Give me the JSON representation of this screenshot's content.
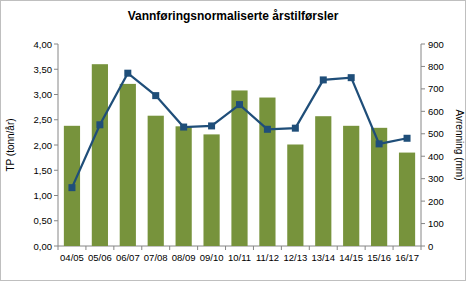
{
  "chart_data": {
    "type": "bar",
    "title": "Vannføringsnormaliserte årstilførsler",
    "y_label": "TP (tonn/år)",
    "y2_label": "Avrenning (mm)",
    "categories": [
      "04/05",
      "05/06",
      "06/07",
      "07/08",
      "08/09",
      "09/10",
      "10/11",
      "11/12",
      "12/13",
      "13/14",
      "14/15",
      "15/16",
      "16/17"
    ],
    "series": [
      {
        "type": "bar",
        "color": "#77933c",
        "values": [
          2.38,
          3.6,
          3.21,
          2.58,
          2.37,
          2.21,
          3.08,
          2.94,
          2.01,
          2.57,
          2.38,
          2.34,
          1.85
        ]
      },
      {
        "type": "line",
        "color": "#1f4e79",
        "marker": "square",
        "axis": "y2",
        "values": [
          260,
          540,
          770,
          670,
          530,
          535,
          630,
          520,
          525,
          740,
          750,
          455,
          480
        ]
      }
    ],
    "ylim": [
      0,
      4
    ],
    "yticks": [
      {
        "value": 0,
        "label": "0,00"
      },
      {
        "value": 0.5,
        "label": "0,50"
      },
      {
        "value": 1,
        "label": "1,00"
      },
      {
        "value": 1.5,
        "label": "1,50"
      },
      {
        "value": 2,
        "label": "2,00"
      },
      {
        "value": 2.5,
        "label": "2,50"
      },
      {
        "value": 3,
        "label": "3,00"
      },
      {
        "value": 3.5,
        "label": "3,50"
      },
      {
        "value": 4,
        "label": "4,00"
      }
    ],
    "y2lim": [
      0,
      900
    ],
    "y2ticks": [
      0,
      100,
      200,
      300,
      400,
      500,
      600,
      700,
      800,
      900
    ],
    "grid": false
  }
}
